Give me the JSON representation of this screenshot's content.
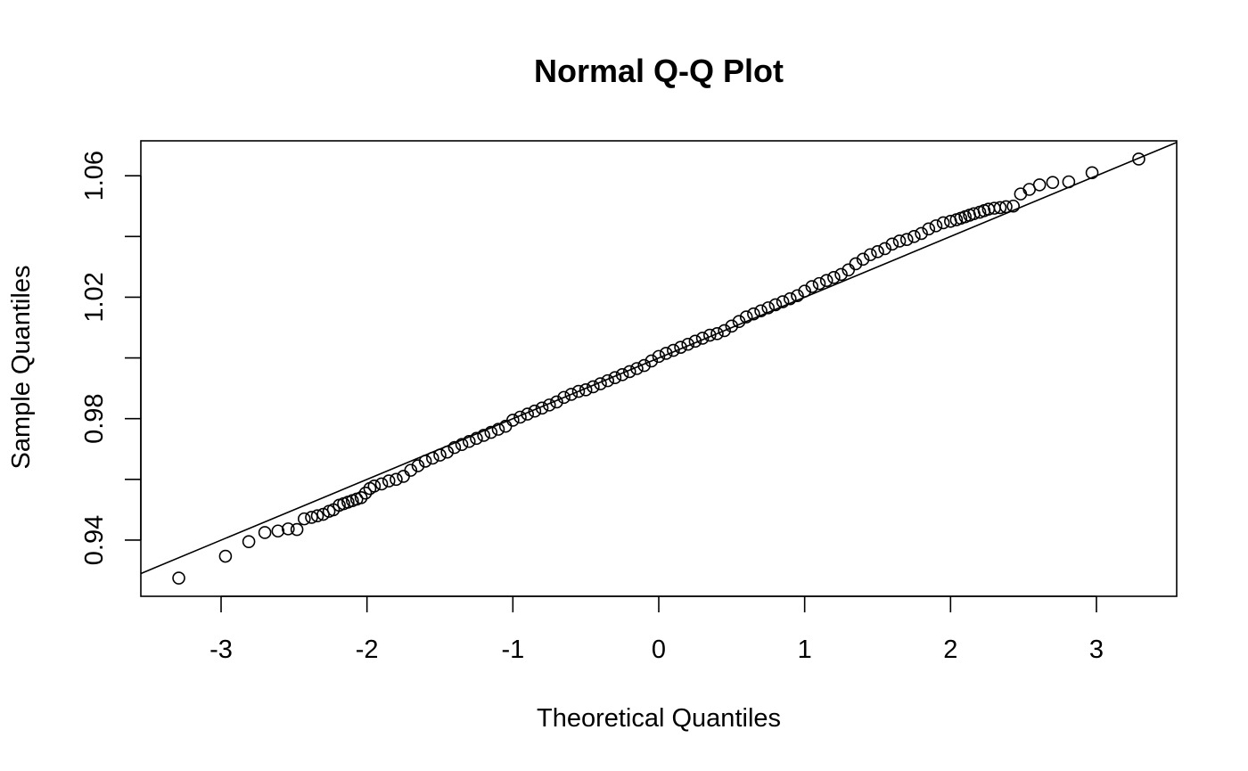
{
  "chart_data": {
    "type": "scatter",
    "title": "Normal Q-Q Plot",
    "xlabel": "Theoretical Quantiles",
    "ylabel": "Sample Quantiles",
    "xlim": [
      -3.55,
      3.55
    ],
    "ylim": [
      0.9215,
      1.0715
    ],
    "x_ticks": [
      -3,
      -2,
      -1,
      0,
      1,
      2,
      3
    ],
    "x_tick_labels": [
      "-3",
      "-2",
      "-1",
      "0",
      "1",
      "2",
      "3"
    ],
    "y_ticks": [
      0.94,
      0.96,
      0.98,
      1.0,
      1.02,
      1.04,
      1.06
    ],
    "y_tick_labels": [
      "0.94",
      "",
      "0.98",
      "",
      "1.02",
      "",
      "1.06"
    ],
    "grid": false,
    "reference_line": {
      "intercept": 1.0,
      "slope": 0.02
    },
    "series": [
      {
        "points": [
          [
            -3.29,
            0.9275
          ],
          [
            -2.97,
            0.9347
          ],
          [
            -2.81,
            0.9395
          ],
          [
            -2.7,
            0.9425
          ],
          [
            -2.61,
            0.943
          ],
          [
            -2.54,
            0.9437
          ],
          [
            -2.48,
            0.9435
          ],
          [
            -2.43,
            0.947
          ],
          [
            -2.38,
            0.9475
          ],
          [
            -2.34,
            0.948
          ],
          [
            -2.3,
            0.9485
          ],
          [
            -2.26,
            0.9495
          ],
          [
            -2.23,
            0.95
          ],
          [
            -2.19,
            0.9515
          ],
          [
            -2.16,
            0.952
          ],
          [
            -2.13,
            0.9525
          ],
          [
            -2.1,
            0.953
          ],
          [
            -2.07,
            0.9535
          ],
          [
            -2.04,
            0.954
          ],
          [
            -2.01,
            0.9555
          ],
          [
            -1.98,
            0.957
          ],
          [
            -1.95,
            0.9578
          ],
          [
            -1.9,
            0.9585
          ],
          [
            -1.85,
            0.9595
          ],
          [
            -1.8,
            0.96
          ],
          [
            -1.75,
            0.961
          ],
          [
            -1.7,
            0.963
          ],
          [
            -1.65,
            0.9645
          ],
          [
            -1.6,
            0.966
          ],
          [
            -1.55,
            0.967
          ],
          [
            -1.5,
            0.968
          ],
          [
            -1.45,
            0.969
          ],
          [
            -1.4,
            0.9705
          ],
          [
            -1.35,
            0.9715
          ],
          [
            -1.3,
            0.9725
          ],
          [
            -1.25,
            0.9735
          ],
          [
            -1.2,
            0.9745
          ],
          [
            -1.15,
            0.9755
          ],
          [
            -1.1,
            0.9765
          ],
          [
            -1.05,
            0.9775
          ],
          [
            -1.0,
            0.9795
          ],
          [
            -0.95,
            0.9805
          ],
          [
            -0.9,
            0.9815
          ],
          [
            -0.85,
            0.9825
          ],
          [
            -0.8,
            0.9835
          ],
          [
            -0.75,
            0.9845
          ],
          [
            -0.7,
            0.9855
          ],
          [
            -0.65,
            0.987
          ],
          [
            -0.6,
            0.988
          ],
          [
            -0.55,
            0.989
          ],
          [
            -0.5,
            0.9895
          ],
          [
            -0.45,
            0.9905
          ],
          [
            -0.4,
            0.9915
          ],
          [
            -0.35,
            0.9925
          ],
          [
            -0.3,
            0.9935
          ],
          [
            -0.25,
            0.9945
          ],
          [
            -0.2,
            0.9955
          ],
          [
            -0.15,
            0.9965
          ],
          [
            -0.1,
            0.9975
          ],
          [
            -0.05,
            0.999
          ],
          [
            0.0,
            1.0005
          ],
          [
            0.05,
            1.0015
          ],
          [
            0.1,
            1.0025
          ],
          [
            0.15,
            1.0035
          ],
          [
            0.2,
            1.0045
          ],
          [
            0.25,
            1.0055
          ],
          [
            0.3,
            1.0065
          ],
          [
            0.35,
            1.0075
          ],
          [
            0.4,
            1.008
          ],
          [
            0.45,
            1.009
          ],
          [
            0.5,
            1.0105
          ],
          [
            0.55,
            1.012
          ],
          [
            0.6,
            1.0135
          ],
          [
            0.65,
            1.0145
          ],
          [
            0.7,
            1.0155
          ],
          [
            0.75,
            1.0165
          ],
          [
            0.8,
            1.0175
          ],
          [
            0.85,
            1.0185
          ],
          [
            0.9,
            1.0195
          ],
          [
            0.95,
            1.0205
          ],
          [
            1.0,
            1.022
          ],
          [
            1.05,
            1.0235
          ],
          [
            1.1,
            1.0245
          ],
          [
            1.15,
            1.0255
          ],
          [
            1.2,
            1.0265
          ],
          [
            1.25,
            1.0275
          ],
          [
            1.3,
            1.029
          ],
          [
            1.35,
            1.031
          ],
          [
            1.4,
            1.0325
          ],
          [
            1.45,
            1.034
          ],
          [
            1.5,
            1.035
          ],
          [
            1.55,
            1.036
          ],
          [
            1.6,
            1.0375
          ],
          [
            1.65,
            1.0385
          ],
          [
            1.7,
            1.039
          ],
          [
            1.75,
            1.04
          ],
          [
            1.8,
            1.041
          ],
          [
            1.85,
            1.0425
          ],
          [
            1.9,
            1.0435
          ],
          [
            1.95,
            1.0445
          ],
          [
            2.0,
            1.045
          ],
          [
            2.04,
            1.0455
          ],
          [
            2.07,
            1.046
          ],
          [
            2.1,
            1.0465
          ],
          [
            2.13,
            1.047
          ],
          [
            2.16,
            1.0475
          ],
          [
            2.2,
            1.048
          ],
          [
            2.23,
            1.0485
          ],
          [
            2.26,
            1.049
          ],
          [
            2.3,
            1.0493
          ],
          [
            2.34,
            1.0495
          ],
          [
            2.38,
            1.0498
          ],
          [
            2.43,
            1.05
          ],
          [
            2.48,
            1.054
          ],
          [
            2.54,
            1.0555
          ],
          [
            2.61,
            1.057
          ],
          [
            2.7,
            1.0578
          ],
          [
            2.81,
            1.058
          ],
          [
            2.97,
            1.061
          ],
          [
            3.29,
            1.0655
          ]
        ]
      }
    ]
  }
}
